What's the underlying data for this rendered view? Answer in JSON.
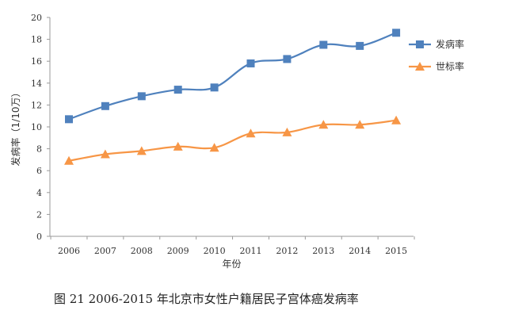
{
  "caption": "图 21    2006-2015 年北京市女性户籍居民子宫体癌发病率",
  "chart_data": {
    "type": "line",
    "x": [
      "2006",
      "2007",
      "2008",
      "2009",
      "2010",
      "2011",
      "2012",
      "2013",
      "2014",
      "2015"
    ],
    "series": [
      {
        "name": "发病率",
        "values": [
          10.7,
          11.9,
          12.8,
          13.4,
          13.6,
          15.8,
          16.2,
          17.5,
          17.4,
          18.6
        ],
        "color": "#4f81bd",
        "marker": "square"
      },
      {
        "name": "世标率",
        "values": [
          6.9,
          7.5,
          7.8,
          8.2,
          8.1,
          9.4,
          9.5,
          10.2,
          10.2,
          10.6
        ],
        "color": "#f79646",
        "marker": "triangle"
      }
    ],
    "xlabel": "年份",
    "ylabel": "发病率（1/10万）",
    "ylim": [
      0,
      20
    ],
    "yticks": [
      "0",
      "2",
      "4",
      "6",
      "8",
      "10",
      "12",
      "14",
      "16",
      "18",
      "20"
    ],
    "grid": false,
    "legend_position": "top-right"
  }
}
